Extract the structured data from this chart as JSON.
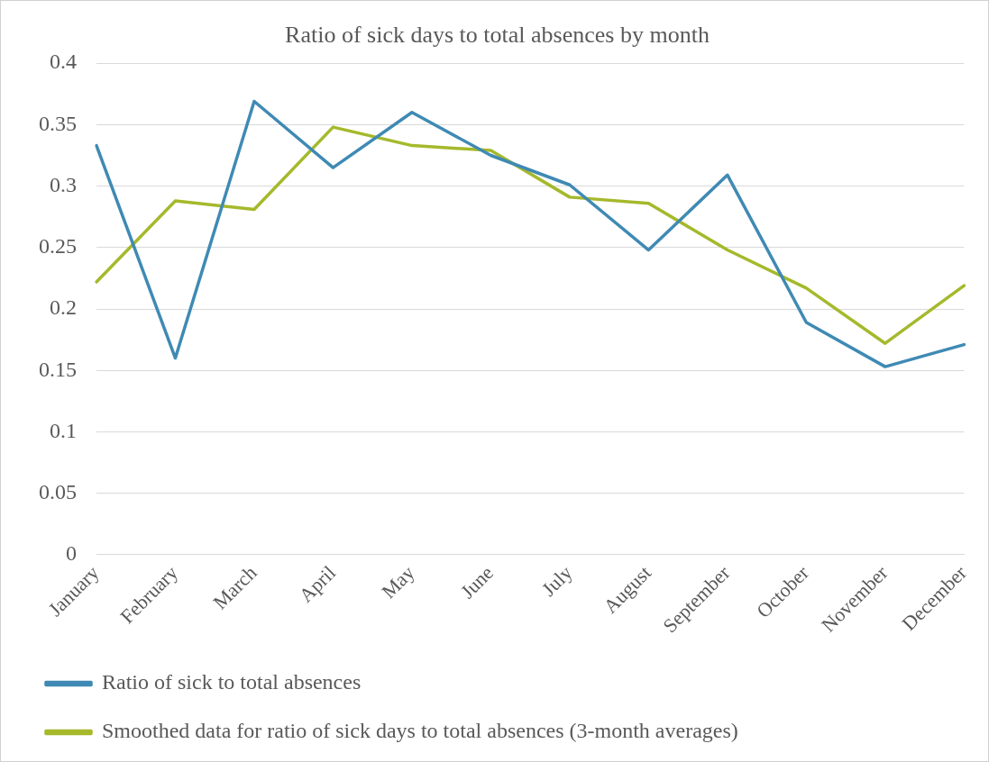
{
  "chart_data": {
    "type": "line",
    "title": "Ratio of sick days to total absences by month",
    "categories": [
      "January",
      "February",
      "March",
      "April",
      "May",
      "June",
      "July",
      "August",
      "September",
      "October",
      "November",
      "December"
    ],
    "series": [
      {
        "name": "Ratio of sick to total absences",
        "color": "#3f8ab4",
        "values": [
          0.333,
          0.16,
          0.369,
          0.315,
          0.36,
          0.325,
          0.301,
          0.248,
          0.309,
          0.189,
          0.153,
          0.171
        ]
      },
      {
        "name": "Smoothed data for ratio of sick days to total absences (3-month averages)",
        "color": "#a5b92b",
        "values": [
          0.222,
          0.288,
          0.281,
          0.348,
          0.333,
          0.329,
          0.291,
          0.286,
          0.248,
          0.217,
          0.172,
          0.219
        ]
      }
    ],
    "ylim": [
      0,
      0.4
    ],
    "yticks": [
      0,
      0.05,
      0.1,
      0.15,
      0.2,
      0.25,
      0.3,
      0.35,
      0.4
    ],
    "grid": "y",
    "legend": "bottom",
    "marker": "none",
    "line_style": "solid"
  }
}
